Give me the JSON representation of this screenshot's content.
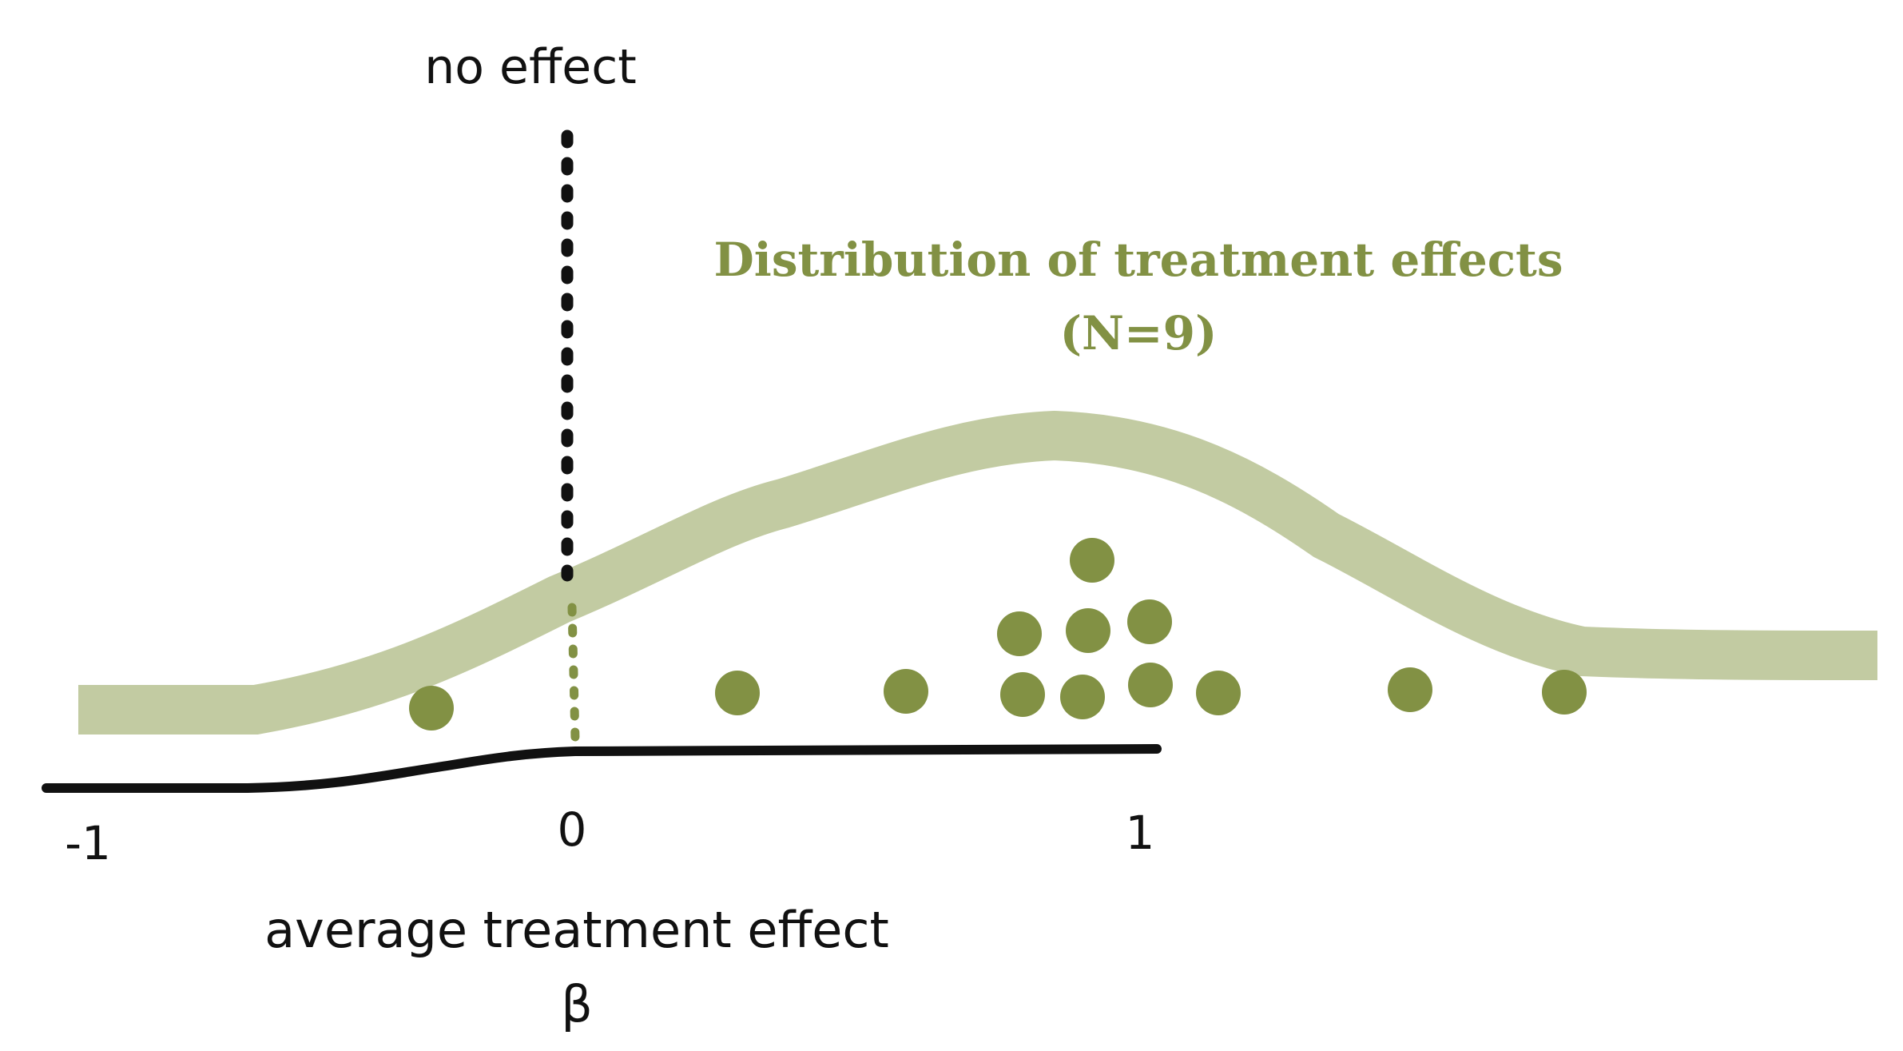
{
  "labels": {
    "no_effect": "no effect",
    "distribution_title": "Distribution of treatment effects",
    "distribution_count": "(N=9)",
    "axis_title": "average treatment effect",
    "axis_symbol": "β"
  },
  "axis": {
    "ticks": [
      "-1",
      "0",
      "1"
    ]
  },
  "colors": {
    "olive": "#829144",
    "light_olive": "#c2cba2",
    "ink": "#111111"
  }
}
